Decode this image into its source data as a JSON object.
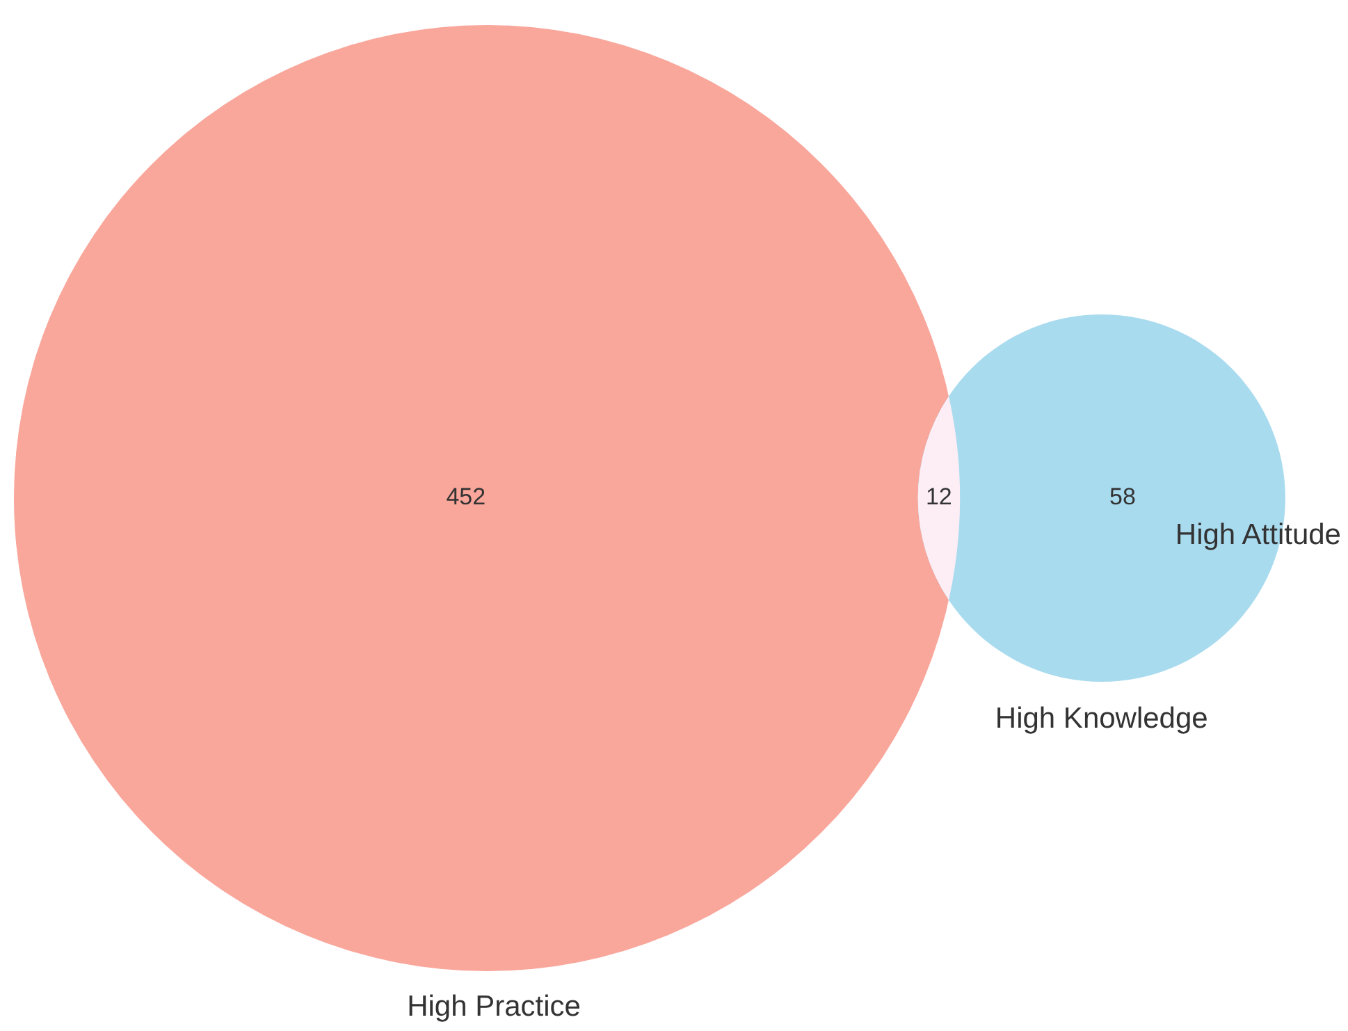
{
  "chart_data": {
    "type": "other",
    "categories": [
      "High Practice",
      "High Knowledge",
      "High Attitude"
    ],
    "values": [
      452,
      12,
      58
    ],
    "colors": [
      "#f9a69b",
      "#fdeef6",
      "#a9dbef"
    ],
    "data_labels": true
  }
}
